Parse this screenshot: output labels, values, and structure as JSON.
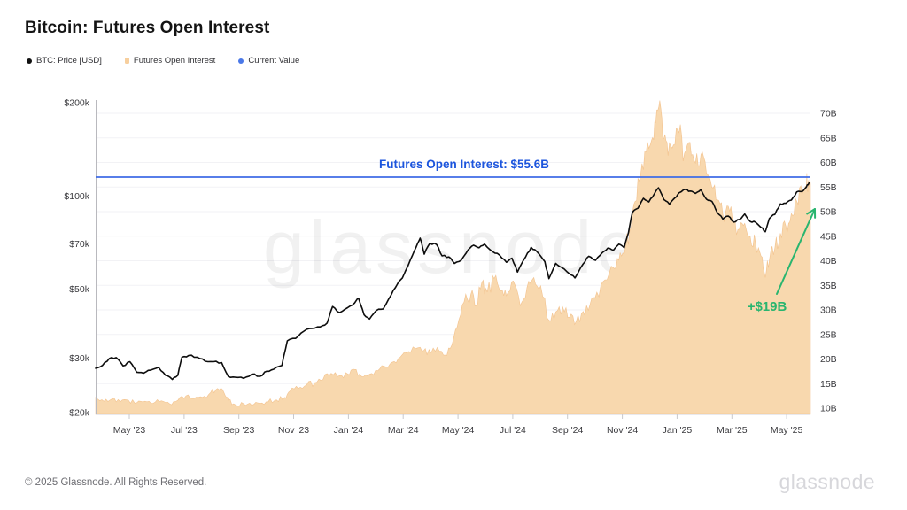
{
  "header": {
    "title": "Bitcoin: Futures Open Interest"
  },
  "legend": [
    {
      "label": "BTC: Price [USD]",
      "color": "#111111",
      "shape": "dot"
    },
    {
      "label": "Futures Open Interest",
      "color": "#f7cf9e",
      "shape": "square"
    },
    {
      "label": "Current Value",
      "color": "#4a78e8",
      "shape": "dot"
    }
  ],
  "annotations": {
    "oi_line_label": "Futures Open Interest: $55.6B",
    "oi_line_color": "#1c55dd",
    "delta_label": "+$19B",
    "delta_color": "#29b56f"
  },
  "watermark": "glassnode",
  "footer": {
    "copyright": "© 2025 Glassnode. All Rights Reserved.",
    "brand": "glassnode"
  },
  "chart_data": {
    "type": "line+area",
    "title": "Bitcoin: Futures Open Interest",
    "x_domain_months": 26.1,
    "x_axis_labels": [
      {
        "label": "May '23",
        "t": 1.23
      },
      {
        "label": "Jul '23",
        "t": 3.23
      },
      {
        "label": "Sep '23",
        "t": 5.23
      },
      {
        "label": "Nov '23",
        "t": 7.23
      },
      {
        "label": "Jan '24",
        "t": 9.23
      },
      {
        "label": "Mar '24",
        "t": 11.23
      },
      {
        "label": "May '24",
        "t": 13.23
      },
      {
        "label": "Jul '24",
        "t": 15.23
      },
      {
        "label": "Sep '24",
        "t": 17.23
      },
      {
        "label": "Nov '24",
        "t": 19.23
      },
      {
        "label": "Jan '25",
        "t": 21.23
      },
      {
        "label": "Mar '25",
        "t": 23.23
      },
      {
        "label": "May '25",
        "t": 25.23
      }
    ],
    "left_axis": {
      "scale": "log",
      "unit": "USD",
      "range_k": [
        20,
        200
      ],
      "ticks": [
        {
          "label": "$200k",
          "value_k": 200
        },
        {
          "label": "$100k",
          "value_k": 100
        },
        {
          "label": "$70k",
          "value_k": 70
        },
        {
          "label": "$50k",
          "value_k": 50
        },
        {
          "label": "$30k",
          "value_k": 30
        },
        {
          "label": "$20k",
          "value_k": 20
        }
      ]
    },
    "right_axis": {
      "scale": "linear",
      "unit": "USD billions",
      "range_b": [
        10,
        70
      ],
      "ticks": [
        {
          "label": "70B",
          "value_b": 70
        },
        {
          "label": "65B",
          "value_b": 65
        },
        {
          "label": "60B",
          "value_b": 60
        },
        {
          "label": "55B",
          "value_b": 55
        },
        {
          "label": "50B",
          "value_b": 50
        },
        {
          "label": "45B",
          "value_b": 45
        },
        {
          "label": "40B",
          "value_b": 40
        },
        {
          "label": "35B",
          "value_b": 35
        },
        {
          "label": "30B",
          "value_b": 30
        },
        {
          "label": "25B",
          "value_b": 25
        },
        {
          "label": "20B",
          "value_b": 20
        },
        {
          "label": "15B",
          "value_b": 15
        },
        {
          "label": "10B",
          "value_b": 10
        }
      ]
    },
    "current_value_b": 55.6,
    "delta_b": 19,
    "series": [
      {
        "name": "BTC: Price [USD]",
        "axis": "left",
        "type": "line",
        "color": "#0d0d0d",
        "points": [
          [
            0,
            27.8
          ],
          [
            0.25,
            28.4
          ],
          [
            0.5,
            29.9
          ],
          [
            0.75,
            30.1
          ],
          [
            1,
            28.3
          ],
          [
            1.25,
            29.2
          ],
          [
            1.5,
            27
          ],
          [
            1.75,
            26.8
          ],
          [
            2,
            27.4
          ],
          [
            2.3,
            28
          ],
          [
            2.55,
            26.4
          ],
          [
            2.8,
            25.6
          ],
          [
            3,
            26.4
          ],
          [
            3.15,
            30.2
          ],
          [
            3.4,
            30.6
          ],
          [
            3.7,
            30.2
          ],
          [
            4,
            29.3
          ],
          [
            4.3,
            29.2
          ],
          [
            4.6,
            29
          ],
          [
            4.85,
            26.1
          ],
          [
            5.1,
            26
          ],
          [
            5.4,
            25.8
          ],
          [
            5.7,
            26.6
          ],
          [
            6,
            26.2
          ],
          [
            6.25,
            27.2
          ],
          [
            6.5,
            27.6
          ],
          [
            6.8,
            28.4
          ],
          [
            7,
            34.1
          ],
          [
            7.3,
            34.7
          ],
          [
            7.6,
            36.6
          ],
          [
            7.9,
            37.4
          ],
          [
            8.2,
            37.8
          ],
          [
            8.45,
            38.9
          ],
          [
            8.65,
            44
          ],
          [
            8.9,
            42
          ],
          [
            9.2,
            43.6
          ],
          [
            9.45,
            45.1
          ],
          [
            9.6,
            46.8
          ],
          [
            9.8,
            41.4
          ],
          [
            10,
            40.1
          ],
          [
            10.25,
            42.7
          ],
          [
            10.5,
            43.2
          ],
          [
            10.8,
            48.1
          ],
          [
            11,
            51.6
          ],
          [
            11.2,
            54.4
          ],
          [
            11.5,
            62.5
          ],
          [
            11.7,
            68.4
          ],
          [
            11.85,
            73.1
          ],
          [
            12,
            64.9
          ],
          [
            12.2,
            70.3
          ],
          [
            12.45,
            69.7
          ],
          [
            12.65,
            64.1
          ],
          [
            12.9,
            63.6
          ],
          [
            13.1,
            60.6
          ],
          [
            13.35,
            62.1
          ],
          [
            13.6,
            67
          ],
          [
            13.8,
            69.4
          ],
          [
            14,
            68.1
          ],
          [
            14.2,
            69.9
          ],
          [
            14.5,
            66.1
          ],
          [
            14.75,
            64.4
          ],
          [
            15,
            61.1
          ],
          [
            15.2,
            63
          ],
          [
            15.4,
            56.8
          ],
          [
            15.7,
            63.6
          ],
          [
            15.9,
            68.3
          ],
          [
            16.1,
            66.3
          ],
          [
            16.4,
            61.4
          ],
          [
            16.55,
            54.1
          ],
          [
            16.8,
            60.6
          ],
          [
            17,
            58.9
          ],
          [
            17.3,
            56.1
          ],
          [
            17.5,
            54.4
          ],
          [
            17.8,
            60.4
          ],
          [
            18,
            63.9
          ],
          [
            18.25,
            62
          ],
          [
            18.5,
            65.6
          ],
          [
            18.7,
            67.9
          ],
          [
            18.9,
            66.8
          ],
          [
            19.1,
            69.9
          ],
          [
            19.3,
            68.1
          ],
          [
            19.45,
            75.9
          ],
          [
            19.6,
            88.6
          ],
          [
            19.8,
            91.3
          ],
          [
            20,
            98.3
          ],
          [
            20.2,
            95.7
          ],
          [
            20.4,
            101.6
          ],
          [
            20.55,
            106.3
          ],
          [
            20.75,
            97.3
          ],
          [
            20.95,
            94.1
          ],
          [
            21.15,
            98.6
          ],
          [
            21.3,
            102.4
          ],
          [
            21.55,
            105.1
          ],
          [
            21.7,
            103.7
          ],
          [
            21.9,
            102
          ],
          [
            22.1,
            104.9
          ],
          [
            22.3,
            97.7
          ],
          [
            22.5,
            96.1
          ],
          [
            22.7,
            88.3
          ],
          [
            22.9,
            84.2
          ],
          [
            23.1,
            86.1
          ],
          [
            23.3,
            82.4
          ],
          [
            23.5,
            84
          ],
          [
            23.7,
            87.5
          ],
          [
            23.9,
            82.7
          ],
          [
            24.1,
            82.2
          ],
          [
            24.3,
            79.1
          ],
          [
            24.45,
            76.7
          ],
          [
            24.6,
            84.6
          ],
          [
            24.8,
            87.2
          ],
          [
            25,
            94.3
          ],
          [
            25.2,
            94.7
          ],
          [
            25.4,
            97
          ],
          [
            25.6,
            103.1
          ],
          [
            25.8,
            103.4
          ],
          [
            25.95,
            106.9
          ],
          [
            26.05,
            110.4
          ]
        ]
      },
      {
        "name": "Futures Open Interest",
        "axis": "right",
        "type": "area",
        "color": "#f8d8ae",
        "points": [
          [
            0,
            12.2
          ],
          [
            0.3,
            11.4
          ],
          [
            0.6,
            11.9
          ],
          [
            0.9,
            11.3
          ],
          [
            1.2,
            11.6
          ],
          [
            1.5,
            11.1
          ],
          [
            1.8,
            11.4
          ],
          [
            2.1,
            11
          ],
          [
            2.4,
            11.5
          ],
          [
            2.7,
            10.9
          ],
          [
            3,
            11.6
          ],
          [
            3.3,
            12.5
          ],
          [
            3.6,
            12
          ],
          [
            3.9,
            12.2
          ],
          [
            4.2,
            13.2
          ],
          [
            4.45,
            14
          ],
          [
            4.7,
            13
          ],
          [
            4.85,
            11.6
          ],
          [
            5.1,
            10.7
          ],
          [
            5.4,
            10.9
          ],
          [
            5.7,
            10.6
          ],
          [
            6,
            11
          ],
          [
            6.3,
            11.3
          ],
          [
            6.6,
            11.7
          ],
          [
            6.9,
            12.2
          ],
          [
            7.1,
            13.5
          ],
          [
            7.4,
            14
          ],
          [
            7.7,
            14.7
          ],
          [
            8,
            15.2
          ],
          [
            8.3,
            15.8
          ],
          [
            8.6,
            17.1
          ],
          [
            8.9,
            16.6
          ],
          [
            9.2,
            17
          ],
          [
            9.45,
            17.9
          ],
          [
            9.7,
            16.5
          ],
          [
            10,
            16.9
          ],
          [
            10.3,
            17.6
          ],
          [
            10.6,
            18.4
          ],
          [
            10.9,
            19.5
          ],
          [
            11.2,
            20.9
          ],
          [
            11.5,
            21.4
          ],
          [
            11.85,
            22.4
          ],
          [
            12.1,
            20.9
          ],
          [
            12.4,
            21.6
          ],
          [
            12.7,
            20.8
          ],
          [
            12.95,
            22.2
          ],
          [
            13.2,
            26.5
          ],
          [
            13.45,
            31.6
          ],
          [
            13.7,
            33.2
          ],
          [
            13.9,
            30.9
          ],
          [
            14.1,
            35.6
          ],
          [
            14.3,
            33.6
          ],
          [
            14.55,
            36.4
          ],
          [
            14.8,
            33.9
          ],
          [
            15,
            32.9
          ],
          [
            15.25,
            35.9
          ],
          [
            15.5,
            30.9
          ],
          [
            15.75,
            34.6
          ],
          [
            16,
            36.6
          ],
          [
            16.25,
            34.9
          ],
          [
            16.55,
            27.9
          ],
          [
            16.8,
            29.6
          ],
          [
            17.05,
            30.6
          ],
          [
            17.3,
            28.5
          ],
          [
            17.55,
            27.7
          ],
          [
            17.8,
            29.7
          ],
          [
            18.05,
            31.1
          ],
          [
            18.3,
            33.6
          ],
          [
            18.6,
            36.1
          ],
          [
            18.9,
            38.6
          ],
          [
            19.1,
            40.1
          ],
          [
            19.3,
            41.4
          ],
          [
            19.5,
            46.1
          ],
          [
            19.7,
            52.1
          ],
          [
            19.9,
            57.6
          ],
          [
            20.1,
            62.1
          ],
          [
            20.3,
            64.6
          ],
          [
            20.45,
            68.1
          ],
          [
            20.6,
            72.6
          ],
          [
            20.75,
            64.9
          ],
          [
            20.9,
            61.4
          ],
          [
            21.1,
            63.6
          ],
          [
            21.3,
            66.1
          ],
          [
            21.5,
            61.9
          ],
          [
            21.7,
            64.1
          ],
          [
            21.9,
            59.9
          ],
          [
            22.1,
            61.6
          ],
          [
            22.3,
            57.9
          ],
          [
            22.5,
            54.9
          ],
          [
            22.7,
            52.4
          ],
          [
            22.9,
            49.4
          ],
          [
            23.1,
            51.1
          ],
          [
            23.3,
            47.9
          ],
          [
            23.5,
            46.4
          ],
          [
            23.7,
            47.6
          ],
          [
            23.9,
            44.9
          ],
          [
            24.1,
            43.4
          ],
          [
            24.3,
            40.9
          ],
          [
            24.45,
            36.6
          ],
          [
            24.6,
            40.1
          ],
          [
            24.8,
            42.6
          ],
          [
            25,
            45.6
          ],
          [
            25.2,
            47.1
          ],
          [
            25.4,
            49.6
          ],
          [
            25.6,
            52.1
          ],
          [
            25.8,
            53.6
          ],
          [
            25.95,
            55.1
          ],
          [
            26.02,
            56.4
          ],
          [
            26.1,
            55.6
          ]
        ]
      }
    ]
  }
}
